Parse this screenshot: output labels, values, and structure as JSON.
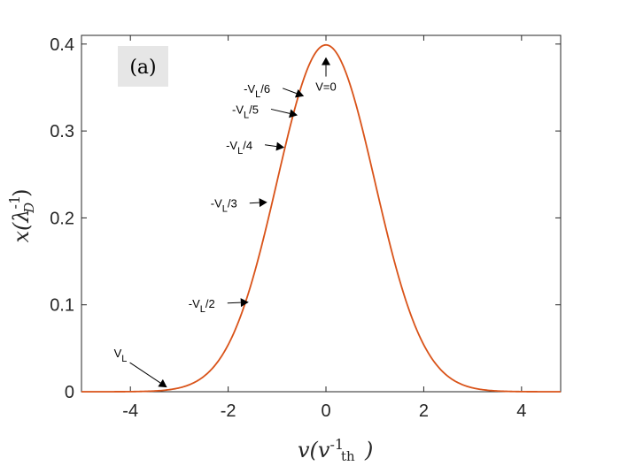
{
  "chart_data": {
    "type": "line",
    "panel_label": "(a)",
    "xlabel": "v(v_th^-1)",
    "ylabel": "x(λ_D^-1)",
    "xlim": [
      -5,
      4.8
    ],
    "ylim": [
      0,
      0.41
    ],
    "xticks": [
      -4,
      -2,
      0,
      2,
      4
    ],
    "yticks": [
      0,
      0.1,
      0.2,
      0.3,
      0.4
    ],
    "xtick_labels": [
      "-4",
      "-2",
      "0",
      "2",
      "4"
    ],
    "ytick_labels": [
      "0",
      "0.1",
      "0.2",
      "0.3",
      "0.4"
    ],
    "grid": false,
    "series": [
      {
        "color": "#d95319",
        "function": "gaussian",
        "peak": 0.399,
        "mean": 0,
        "sigma": 1
      }
    ],
    "annotations": [
      {
        "text": "V=0",
        "x": 0,
        "y": 0.385
      },
      {
        "text": "-V_L/6",
        "x": -0.45,
        "y": 0.34
      },
      {
        "text": "-V_L/5",
        "x": -0.58,
        "y": 0.318
      },
      {
        "text": "-V_L/4",
        "x": -0.85,
        "y": 0.281
      },
      {
        "text": "-V_L/3",
        "x": -1.2,
        "y": 0.218
      },
      {
        "text": "-V_L/2",
        "x": -1.58,
        "y": 0.103
      },
      {
        "text": "V_L",
        "x": -3.25,
        "y": 0.005
      }
    ]
  }
}
